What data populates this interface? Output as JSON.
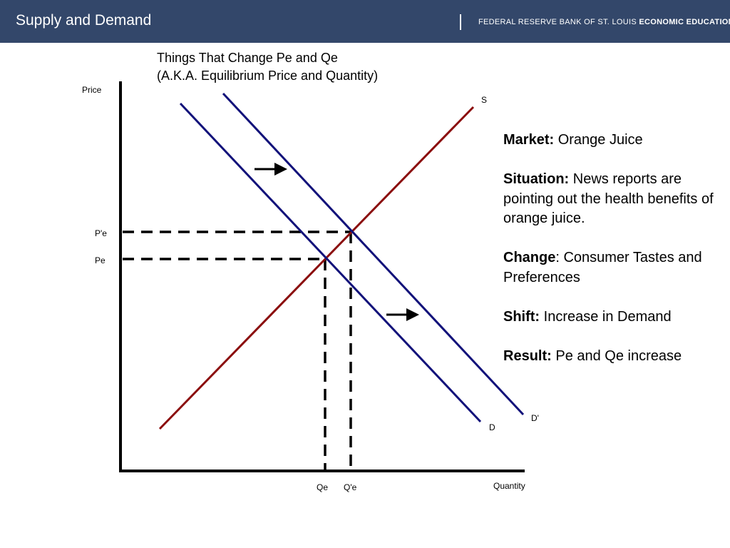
{
  "header": {
    "title": "Supply and Demand",
    "org_regular": "FEDERAL RESERVE BANK OF ST. LOUIS ",
    "org_bold": "ECONOMIC EDUCATION"
  },
  "graph": {
    "title_line1": "Things That Change Pe and Qe",
    "title_line2": "(A.K.A. Equilibrium Price and Quantity)",
    "y_axis_label": "Price",
    "x_axis_label": "Quantity",
    "supply_label": "S",
    "demand_label": "D",
    "new_demand_label": "D'",
    "price_labels": {
      "old": "Pe",
      "new": "P'e"
    },
    "quantity_labels": {
      "old": "Qe",
      "new": "Q'e"
    },
    "colors": {
      "supply": "#8b0e0e",
      "demand": "#12127a",
      "axis": "#000000",
      "header": "#33476a"
    }
  },
  "info": {
    "market": {
      "label": "Market:",
      "text": " Orange Juice"
    },
    "situation": {
      "label": "Situation:",
      "text": " News reports are pointing out the health benefits of orange juice."
    },
    "change": {
      "label": "Change",
      "text": ": Consumer Tastes and Preferences"
    },
    "shift": {
      "label": "Shift:",
      "text": " Increase in Demand"
    },
    "result": {
      "label": "Result:",
      "text": " Pe and Qe increase"
    }
  }
}
